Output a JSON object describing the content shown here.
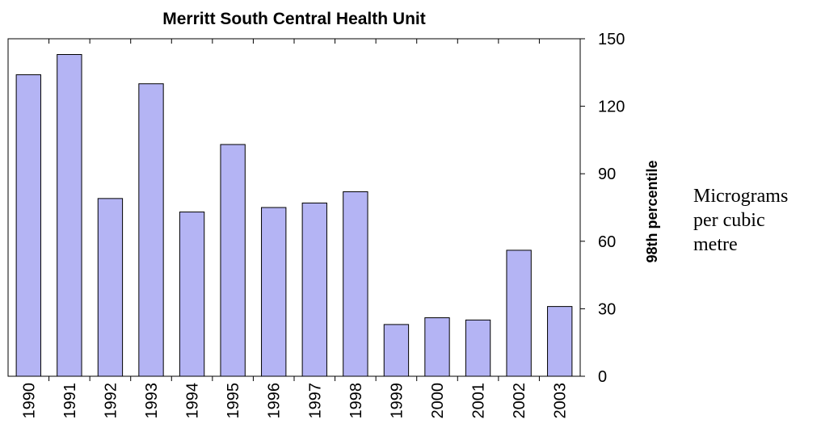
{
  "chart_data": {
    "type": "bar",
    "title": "Merritt South Central Health Unit",
    "y_axis_label": "98th percentile",
    "annotation_lines": [
      "Micrograms",
      "per cubic",
      "metre"
    ],
    "categories": [
      "1990",
      "1991",
      "1992",
      "1993",
      "1994",
      "1995",
      "1996",
      "1997",
      "1998",
      "1999",
      "2000",
      "2001",
      "2002",
      "2003"
    ],
    "values": [
      134,
      143,
      79,
      130,
      73,
      103,
      75,
      77,
      82,
      23,
      26,
      25,
      56,
      31
    ],
    "color": "#b4b4f4",
    "ylim": [
      0,
      150
    ],
    "yticks": [
      0,
      30,
      60,
      90,
      120,
      150
    ],
    "y_axis_side": "right",
    "grid": false
  }
}
